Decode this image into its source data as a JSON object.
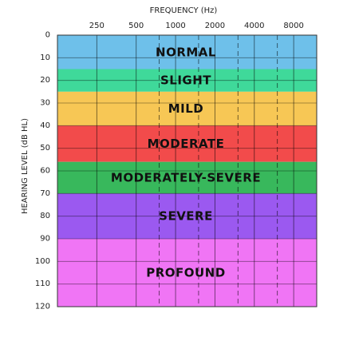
{
  "chart_data": {
    "type": "heatmap",
    "title": "FREQUENCY (Hz)",
    "xlabel": "FREQUENCY (Hz)",
    "ylabel": "HEARING LEVEL (dB HL)",
    "x_ticks": [
      "250",
      "500",
      "1000",
      "2000",
      "4000",
      "8000"
    ],
    "x_dashed_ticks": [
      "750",
      "1500",
      "3000",
      "6000"
    ],
    "y_ticks": [
      0,
      10,
      20,
      30,
      40,
      50,
      60,
      70,
      80,
      90,
      100,
      110,
      120
    ],
    "ylim": [
      0,
      120
    ],
    "y_inverted": true,
    "grid": true,
    "bands": [
      {
        "label": "NORMAL",
        "from": 0,
        "to": 15,
        "color": "#6ec0ea"
      },
      {
        "label": "SLIGHT",
        "from": 15,
        "to": 25,
        "color": "#3fd99a"
      },
      {
        "label": "MILD",
        "from": 25,
        "to": 40,
        "color": "#f7c755"
      },
      {
        "label": "MODERATE",
        "from": 40,
        "to": 56,
        "color": "#f24b4b"
      },
      {
        "label": "MODERATELY-SEVERE",
        "from": 56,
        "to": 70,
        "color": "#38b85c"
      },
      {
        "label": "SEVERE",
        "from": 70,
        "to": 90,
        "color": "#9b59f0"
      },
      {
        "label": "PROFOUND",
        "from": 90,
        "to": 120,
        "color": "#f075f5"
      }
    ]
  }
}
